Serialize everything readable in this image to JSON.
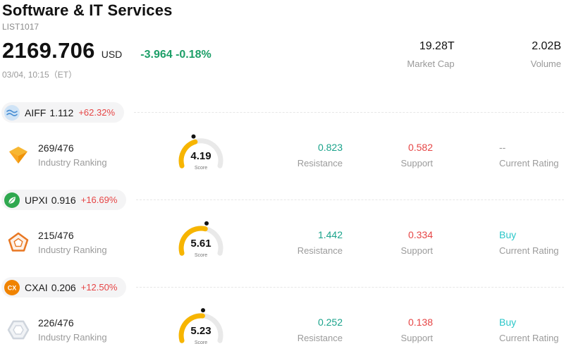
{
  "header": {
    "title": "Software & IT Services",
    "subtitle": "LIST1017",
    "price": "2169.706",
    "currency": "USD",
    "change": "-3.964 -0.18%",
    "timestamp": "03/04, 10:15（ET）",
    "market_cap": {
      "value": "19.28T",
      "label": "Market Cap"
    },
    "volume": {
      "value": "2.02B",
      "label": "Volume"
    }
  },
  "colors": {
    "up": "#e64545",
    "down": "#1d9f68",
    "resistance": "#1aa38b",
    "support": "#e64545",
    "buy": "#2bc7c9",
    "muted": "#999999",
    "gauge_fill": "#f7b500",
    "gauge_track": "#e9e9e9"
  },
  "stocks": [
    {
      "ticker": "AIFF",
      "price": "1.112",
      "change": "+62.32%",
      "pill_icon": "wave-logo-icon",
      "company_icon": "origami-logo-icon",
      "rank": "269/476",
      "rank_label": "Industry Ranking",
      "score": "4.19",
      "score_label": "Score",
      "resistance": "0.823",
      "resistance_label": "Resistance",
      "support": "0.582",
      "support_label": "Support",
      "rating": "--",
      "rating_state": "none",
      "rating_label": "Current Rating"
    },
    {
      "ticker": "UPXI",
      "price": "0.916",
      "change": "+16.69%",
      "pill_icon": "leaf-logo-icon",
      "company_icon": "pentagon-logo-icon",
      "rank": "215/476",
      "rank_label": "Industry Ranking",
      "score": "5.61",
      "score_label": "Score",
      "resistance": "1.442",
      "resistance_label": "Resistance",
      "support": "0.334",
      "support_label": "Support",
      "rating": "Buy",
      "rating_state": "buy",
      "rating_label": "Current Rating"
    },
    {
      "ticker": "CXAI",
      "price": "0.206",
      "change": "+12.50%",
      "pill_icon": "cx-logo-icon",
      "company_icon": "hexagon-logo-icon",
      "rank": "226/476",
      "rank_label": "Industry Ranking",
      "score": "5.23",
      "score_label": "Score",
      "resistance": "0.252",
      "resistance_label": "Resistance",
      "support": "0.138",
      "support_label": "Support",
      "rating": "Buy",
      "rating_state": "buy",
      "rating_label": "Current Rating"
    }
  ]
}
